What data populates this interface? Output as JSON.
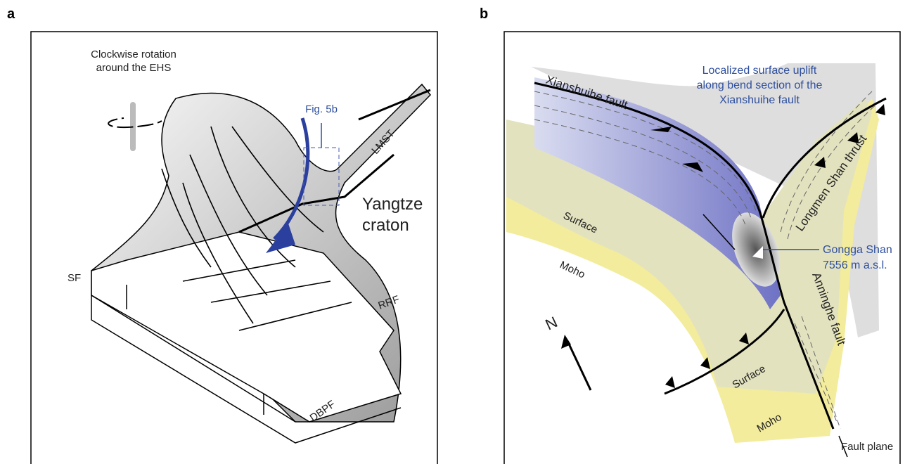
{
  "panel_a": {
    "label": "a",
    "rotation_note": [
      "Clockwise rotation",
      "around the EHS"
    ],
    "fig_ref": "Fig. 5b",
    "labels": {
      "lmst": "LMST",
      "sf": "SF",
      "rrf": "RRF",
      "dbpf": "DBPF"
    },
    "craton": [
      "Yangtze",
      "craton"
    ]
  },
  "panel_b": {
    "label": "b",
    "uplift_note": [
      "Localized surface uplift",
      "along bend section of the",
      "Xianshuihe fault"
    ],
    "xianshuihe": "Xianshuihe fault",
    "longmen": "Longmen Shan thrust",
    "surface": [
      "Surface",
      "Surface"
    ],
    "moho": [
      "Moho",
      "Moho"
    ],
    "gongga": [
      "Gongga Shan",
      "7556 m a.s.l."
    ],
    "anninghe": "Anninghe fault",
    "fault_plane": "Fault plane",
    "north": "N"
  }
}
